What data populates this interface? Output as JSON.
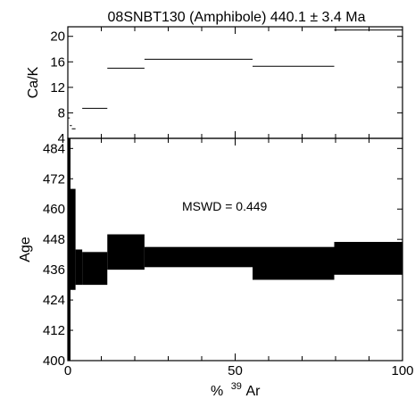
{
  "chart_data": {
    "title": "08SNBT130 (Amphibole) 440.1 ± 3.4 Ma",
    "annotation": "MSWD = 0.449",
    "xlabel_prefix": "%",
    "xlabel_superscript": "39",
    "xlabel_suffix": "Ar",
    "xlim": [
      0,
      100
    ],
    "xticks": [
      0,
      50,
      100
    ],
    "panels": [
      {
        "type": "step",
        "ylabel": "Ca/K",
        "ylim": [
          4,
          21.5
        ],
        "yticks": [
          4,
          8,
          12,
          16,
          20
        ],
        "steps": [
          {
            "x0": 0,
            "x1": 0.6,
            "y": 7.2
          },
          {
            "x0": 0.6,
            "x1": 1.2,
            "y": 6.0
          },
          {
            "x0": 1.2,
            "x1": 2.3,
            "y": 5.5
          },
          {
            "x0": 4.3,
            "x1": 11.8,
            "y": 8.7
          },
          {
            "x0": 11.8,
            "x1": 22.9,
            "y": 15.0
          },
          {
            "x0": 22.9,
            "x1": 55.2,
            "y": 16.4
          },
          {
            "x0": 55.2,
            "x1": 79.6,
            "y": 15.3
          },
          {
            "x0": 79.6,
            "x1": 100,
            "y": 21.0
          }
        ]
      },
      {
        "type": "age-spectrum",
        "ylabel": "Age",
        "ylim": [
          400,
          488
        ],
        "yticks": [
          400,
          412,
          424,
          436,
          448,
          460,
          472,
          484
        ],
        "steps": [
          {
            "x0": 0,
            "x1": 0.8,
            "ymin": 400,
            "ymax": 488
          },
          {
            "x0": 0.8,
            "x1": 2.3,
            "ymin": 428,
            "ymax": 468
          },
          {
            "x0": 2.3,
            "x1": 4.3,
            "ymin": 430,
            "ymax": 444
          },
          {
            "x0": 4.3,
            "x1": 11.8,
            "ymin": 430,
            "ymax": 443
          },
          {
            "x0": 11.8,
            "x1": 22.9,
            "ymin": 436,
            "ymax": 450
          },
          {
            "x0": 22.9,
            "x1": 55.2,
            "ymin": 437,
            "ymax": 445
          },
          {
            "x0": 55.2,
            "x1": 79.6,
            "ymin": 432,
            "ymax": 445
          },
          {
            "x0": 79.6,
            "x1": 100,
            "ymin": 434,
            "ymax": 447
          }
        ]
      }
    ]
  }
}
